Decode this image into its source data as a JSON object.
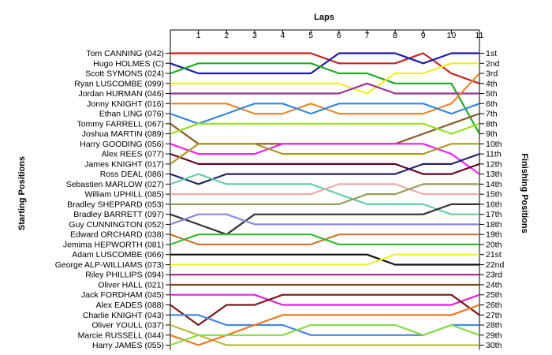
{
  "chart_data": {
    "type": "line",
    "title": "Laps",
    "xlabel": "",
    "left_axis_label": "Starting Positions",
    "right_axis_label": "Finishing Positions",
    "x": [
      0,
      1,
      2,
      3,
      4,
      5,
      6,
      7,
      8,
      9,
      10,
      11
    ],
    "x_tick_labels": [
      "1",
      "2",
      "3",
      "4",
      "5",
      "6",
      "7",
      "8",
      "9",
      "10",
      "11"
    ],
    "finishing_labels": [
      "1st",
      "2nd",
      "3rd",
      "4th",
      "5th",
      "6th",
      "7th",
      "8th",
      "9th",
      "10th",
      "11th",
      "12th",
      "13th",
      "14th",
      "15th",
      "16th",
      "17th",
      "18th",
      "19th",
      "20th",
      "21st",
      "22nd",
      "23rd",
      "24th",
      "25th",
      "26th",
      "27th",
      "28th",
      "29th",
      "30th"
    ],
    "grid": false,
    "series": [
      {
        "name": "Tom CANNING (042)",
        "color": "#cc2222",
        "positions": [
          1,
          1,
          1,
          1,
          1,
          1,
          2,
          2,
          2,
          1,
          3,
          4
        ]
      },
      {
        "name": "Hugo HOLMES (C)",
        "color": "#1a1aaa",
        "positions": [
          2,
          3,
          3,
          3,
          3,
          3,
          1,
          1,
          1,
          2,
          1,
          1
        ]
      },
      {
        "name": "Scott SYMONS (024)",
        "color": "#22aa22",
        "positions": [
          3,
          2,
          2,
          2,
          2,
          2,
          3,
          3,
          4,
          4,
          4,
          9
        ]
      },
      {
        "name": "Ryan LUSCOMBE (099)",
        "color": "#eeee22",
        "positions": [
          4,
          4,
          4,
          4,
          4,
          4,
          4,
          5,
          3,
          3,
          2,
          2
        ]
      },
      {
        "name": "Jordan HURMAN (046)",
        "color": "#993399",
        "positions": [
          5,
          5,
          5,
          5,
          5,
          5,
          5,
          4,
          5,
          5,
          5,
          5
        ]
      },
      {
        "name": "Jonny KNIGHT (016)",
        "color": "#e88a2a",
        "positions": [
          6,
          6,
          6,
          7,
          7,
          6,
          7,
          7,
          7,
          7,
          6,
          3
        ]
      },
      {
        "name": "Ethan LING (076)",
        "color": "#3388dd",
        "positions": [
          7,
          8,
          7,
          6,
          6,
          7,
          6,
          6,
          6,
          6,
          7,
          6
        ]
      },
      {
        "name": "Tommy FARRELL (067)",
        "color": "#8a5a2a",
        "positions": [
          8,
          10,
          10,
          10,
          10,
          10,
          10,
          10,
          10,
          9,
          8,
          7
        ]
      },
      {
        "name": "Joshua MARTIN (089)",
        "color": "#99dd22",
        "positions": [
          9,
          8,
          8,
          8,
          8,
          8,
          8,
          8,
          8,
          8,
          9,
          8
        ]
      },
      {
        "name": "Harry GOODING (056)",
        "color": "#ee22ee",
        "positions": [
          10,
          11,
          11,
          11,
          10,
          10,
          10,
          10,
          10,
          10,
          11,
          13
        ]
      },
      {
        "name": "Alex REES (077)",
        "color": "#660022",
        "positions": [
          11,
          12,
          12,
          12,
          12,
          12,
          12,
          12,
          12,
          13,
          13,
          12
        ]
      },
      {
        "name": "James KNIGHT (017)",
        "color": "#aa9a22",
        "positions": [
          12,
          10,
          10,
          10,
          11,
          11,
          11,
          11,
          11,
          11,
          10,
          10
        ]
      },
      {
        "name": "Ross DEAL (086)",
        "color": "#222266",
        "positions": [
          13,
          14,
          13,
          13,
          13,
          13,
          13,
          13,
          13,
          12,
          12,
          11
        ]
      },
      {
        "name": "Sebastien MARLOW (027)",
        "color": "#66ccaa",
        "positions": [
          14,
          13,
          14,
          14,
          14,
          14,
          15,
          16,
          16,
          16,
          17,
          17
        ]
      },
      {
        "name": "William UPHILL (085)",
        "color": "#eeaaaa",
        "positions": [
          15,
          15,
          15,
          15,
          15,
          15,
          14,
          14,
          14,
          15,
          15,
          15
        ]
      },
      {
        "name": "Bradley SHEPPARD (053)",
        "color": "#9a9a55",
        "positions": [
          16,
          16,
          16,
          16,
          16,
          16,
          16,
          15,
          15,
          14,
          14,
          14
        ]
      },
      {
        "name": "Bradley BARRETT (097)",
        "color": "#333333",
        "positions": [
          17,
          18,
          19,
          17,
          17,
          17,
          17,
          17,
          17,
          17,
          16,
          16
        ]
      },
      {
        "name": "Guy CUNNINGTON (052)",
        "color": "#8888dd",
        "positions": [
          18,
          17,
          17,
          18,
          18,
          18,
          18,
          18,
          18,
          18,
          18,
          18
        ]
      },
      {
        "name": "Edward ORCHARD (038)",
        "color": "#cc7733",
        "positions": [
          19,
          20,
          20,
          20,
          20,
          20,
          19,
          19,
          19,
          19,
          19,
          19
        ]
      },
      {
        "name": "Jemima HEPWORTH (081)",
        "color": "#33bb33",
        "positions": [
          20,
          19,
          19,
          19,
          19,
          19,
          20,
          20,
          20,
          20,
          20,
          20
        ]
      },
      {
        "name": "Adam LUSCOMBE (066)",
        "color": "#111111",
        "positions": [
          21,
          21,
          21,
          21,
          21,
          21,
          21,
          21,
          22,
          22,
          22,
          22
        ]
      },
      {
        "name": "George ALP-WILLIAMS (073)",
        "color": "#f0f033",
        "positions": [
          22,
          22,
          22,
          22,
          22,
          22,
          22,
          22,
          21,
          21,
          21,
          21
        ]
      },
      {
        "name": "Riley PHILLIPS (094)",
        "color": "#aa2288",
        "positions": [
          23,
          23,
          23,
          23,
          23,
          23,
          23,
          23,
          23,
          23,
          23,
          23
        ]
      },
      {
        "name": "Oliver HALL (021)",
        "color": "#7a4a1a",
        "positions": [
          24,
          24,
          24,
          24,
          24,
          24,
          24,
          24,
          24,
          24,
          24,
          24
        ]
      },
      {
        "name": "Jack FORDHAM (045)",
        "color": "#dd22dd",
        "positions": [
          25,
          25,
          25,
          25,
          26,
          26,
          26,
          26,
          26,
          26,
          26,
          25
        ]
      },
      {
        "name": "Alex EADES (088)",
        "color": "#771a1a",
        "positions": [
          26,
          28,
          26,
          26,
          25,
          25,
          25,
          25,
          25,
          25,
          25,
          27
        ]
      },
      {
        "name": "Charlie KNIGHT (043)",
        "color": "#4488dd",
        "positions": [
          27,
          27,
          28,
          28,
          28,
          29,
          29,
          29,
          29,
          29,
          28,
          28
        ]
      },
      {
        "name": "Oliver YOULL (037)",
        "color": "#bbbb44",
        "positions": [
          28,
          29,
          30,
          30,
          30,
          30,
          30,
          30,
          30,
          30,
          30,
          30
        ]
      },
      {
        "name": "Marcie RUSSELL (044)",
        "color": "#ee7722",
        "positions": [
          29,
          30,
          29,
          28,
          27,
          27,
          27,
          27,
          27,
          27,
          27,
          26
        ]
      },
      {
        "name": "Harry JAMES (055)",
        "color": "#88dd44",
        "positions": [
          30,
          29,
          29,
          29,
          29,
          28,
          28,
          28,
          28,
          29,
          28,
          29
        ]
      }
    ]
  }
}
